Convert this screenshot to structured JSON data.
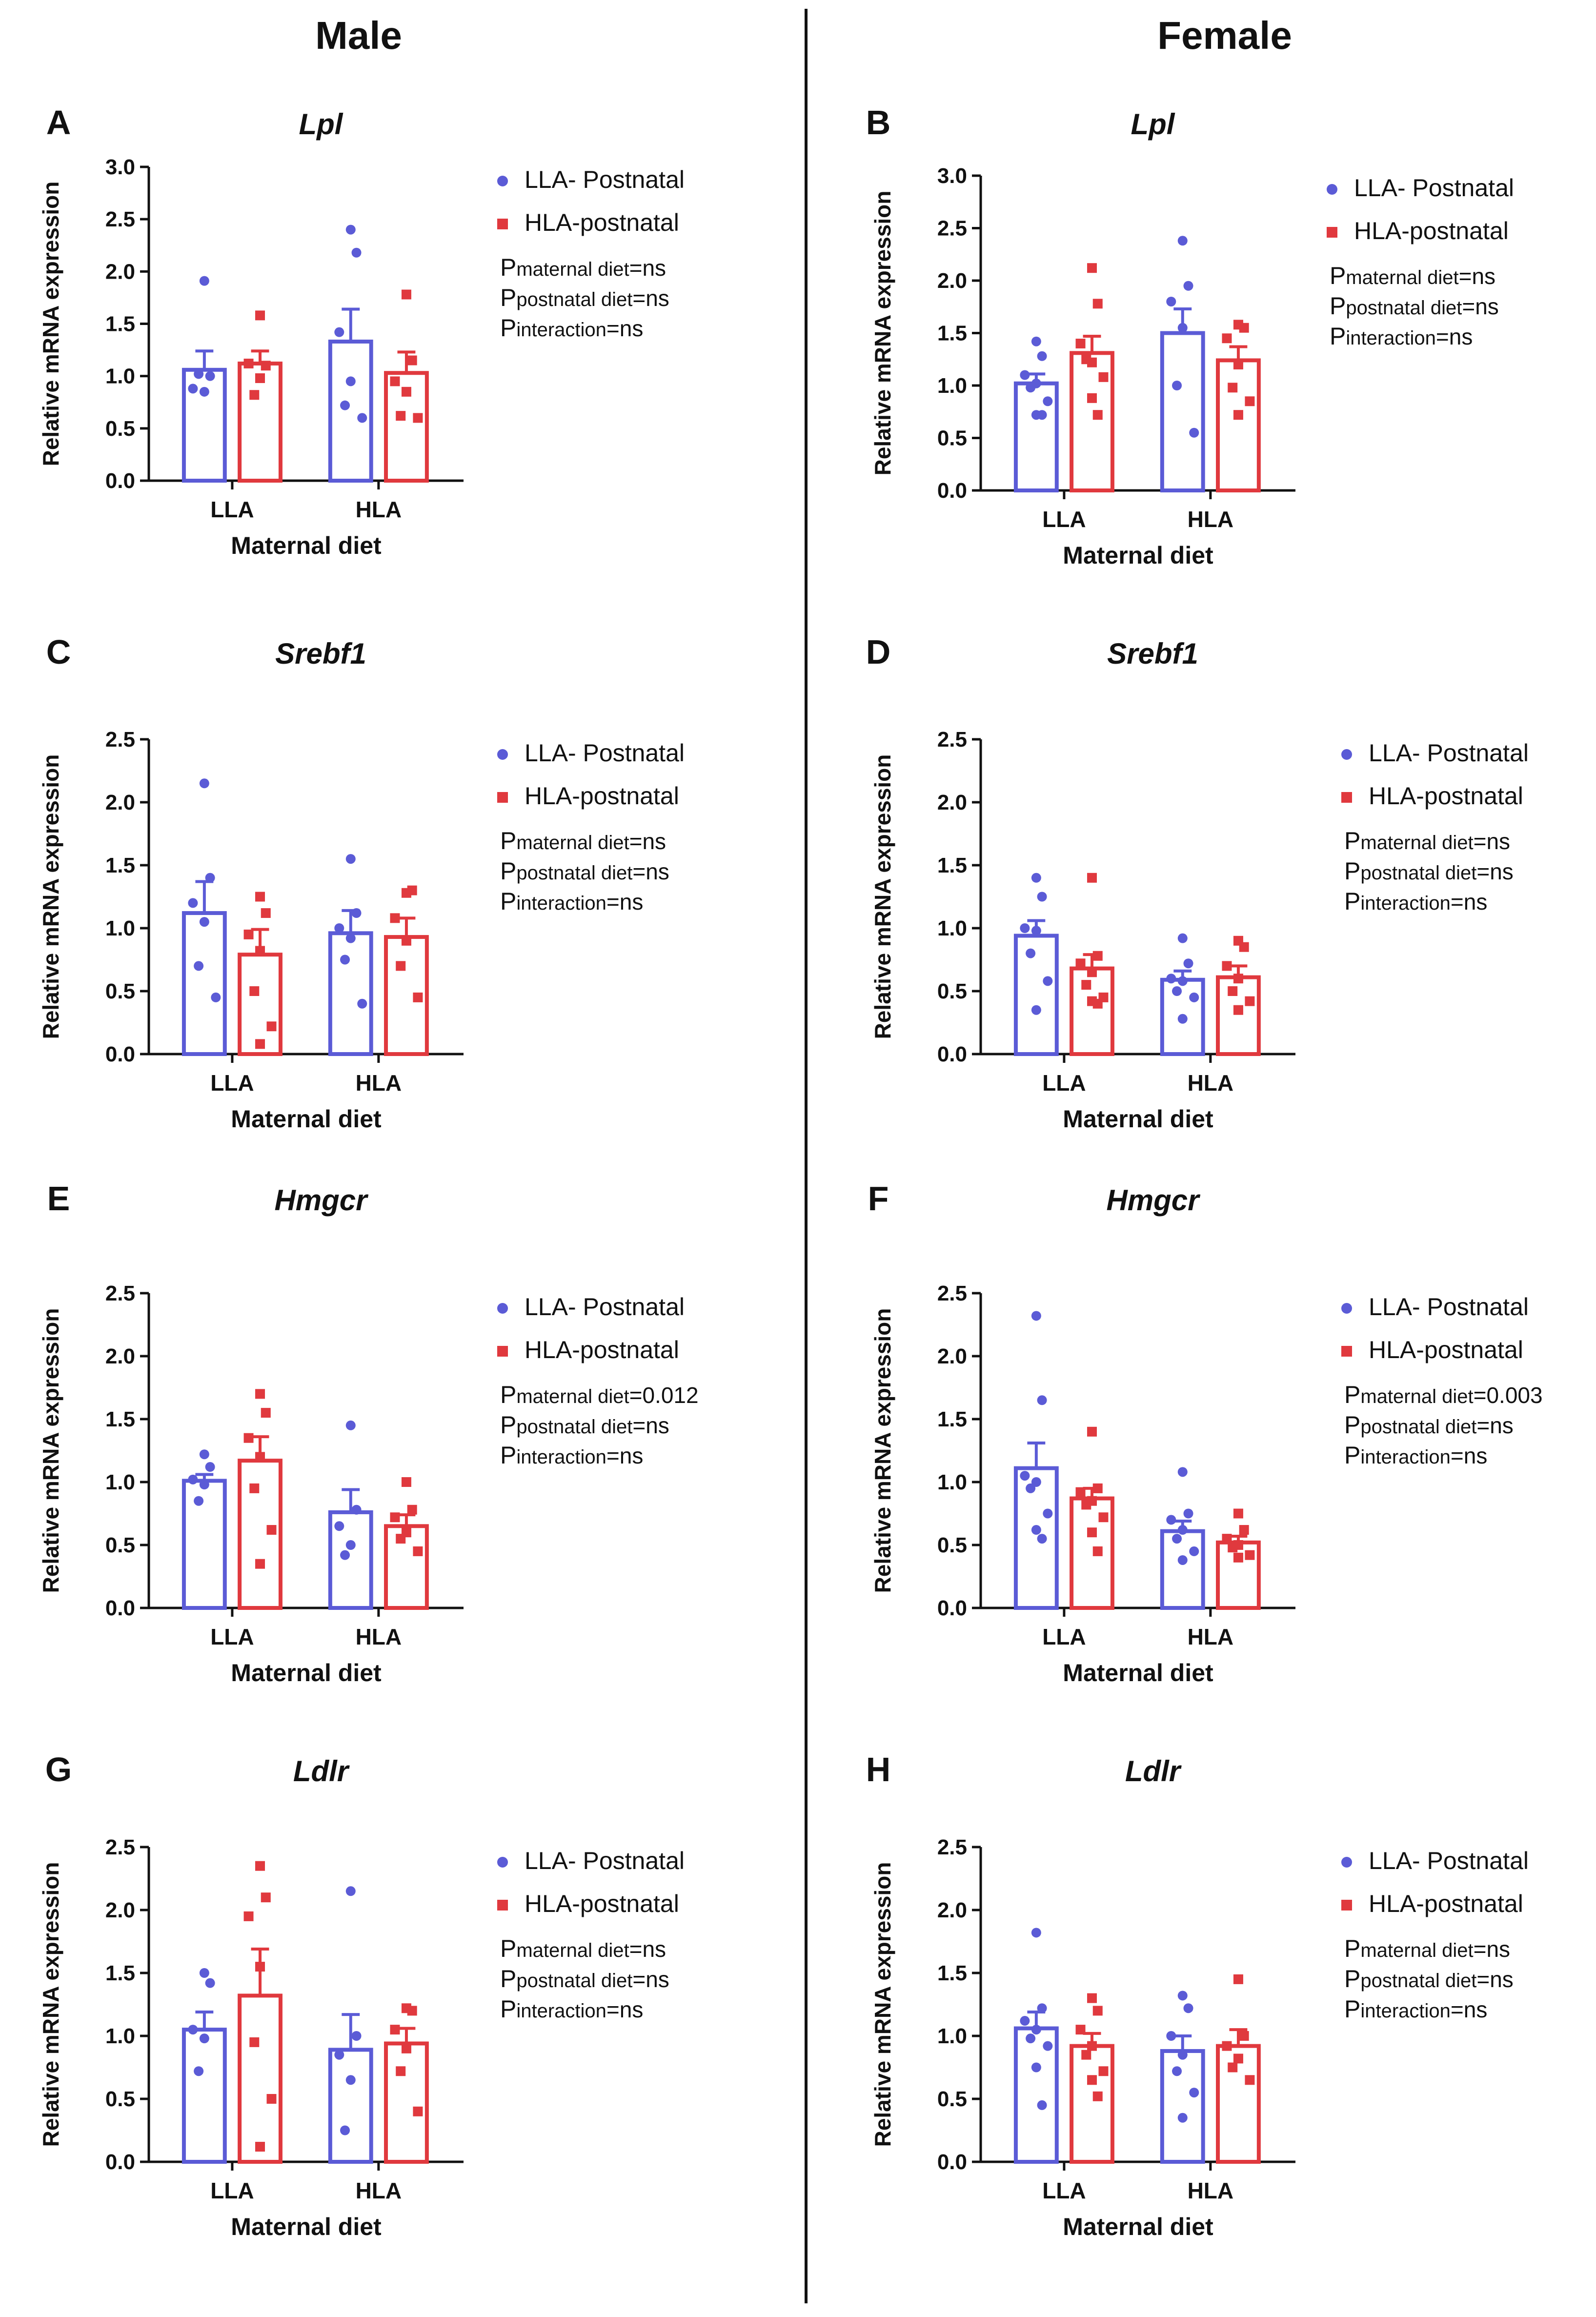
{
  "headers": {
    "male": "Male",
    "female": "Female"
  },
  "colors": {
    "llaBar": "#5b5bd6",
    "hlaBar": "#e0393e",
    "axis": "#111111",
    "divider": "#111111"
  },
  "legend": {
    "series": [
      "LLA- Postnatal",
      "HLA-postnatal"
    ],
    "stats_prefix": "P",
    "stats_labels": [
      "maternal diet",
      "postnatal diet",
      "interaction"
    ]
  },
  "chart_data": [
    {
      "panel": "A",
      "title": "Lpl",
      "type": "bar",
      "ylabel": "Relative mRNA expression",
      "xlabel": "Maternal diet",
      "ylim": [
        0,
        3.0
      ],
      "yticks": [
        0.0,
        0.5,
        1.0,
        1.5,
        2.0,
        2.5,
        3.0
      ],
      "yticklabels": [
        "0.0",
        "0.5",
        "1.0",
        "1.5",
        "2.0",
        "2.5",
        "3.0"
      ],
      "categories": [
        "LLA",
        "HLA"
      ],
      "series": [
        {
          "name": "LLA- Postnatal",
          "values": [
            1.06,
            1.33
          ],
          "sem": [
            0.18,
            0.31
          ],
          "points": [
            [
              1.91,
              1.0,
              0.88,
              0.85,
              1.02
            ],
            [
              2.4,
              2.18,
              1.42,
              0.95,
              0.72,
              0.6
            ]
          ]
        },
        {
          "name": "HLA-postnatal",
          "values": [
            1.12,
            1.03
          ],
          "sem": [
            0.12,
            0.2
          ],
          "points": [
            [
              1.58,
              1.1,
              1.12,
              0.98,
              0.82
            ],
            [
              1.78,
              1.15,
              0.95,
              0.85,
              0.62,
              0.6
            ]
          ]
        }
      ],
      "stats": [
        "ns",
        "ns",
        "ns"
      ]
    },
    {
      "panel": "B",
      "title": "Lpl",
      "type": "bar",
      "ylabel": "Relative mRNA expression",
      "xlabel": "Maternal diet",
      "ylim": [
        0,
        3.0
      ],
      "yticks": [
        0.0,
        0.5,
        1.0,
        1.5,
        2.0,
        2.5,
        3.0
      ],
      "yticklabels": [
        "0.0",
        "0.5",
        "1.0",
        "1.5",
        "2.0",
        "2.5",
        "3.0"
      ],
      "categories": [
        "LLA",
        "HLA"
      ],
      "series": [
        {
          "name": "LLA- Postnatal",
          "values": [
            1.02,
            1.5
          ],
          "sem": [
            0.09,
            0.23
          ],
          "points": [
            [
              1.42,
              1.28,
              1.1,
              1.02,
              0.98,
              0.85,
              0.72,
              0.72
            ],
            [
              2.38,
              1.95,
              1.8,
              1.55,
              1.0,
              0.55
            ]
          ]
        },
        {
          "name": "HLA-postnatal",
          "values": [
            1.31,
            1.24
          ],
          "sem": [
            0.16,
            0.13
          ],
          "points": [
            [
              2.12,
              1.78,
              1.4,
              1.22,
              1.25,
              1.08,
              0.88,
              0.72
            ],
            [
              1.58,
              1.55,
              1.45,
              1.2,
              0.98,
              0.85,
              0.72
            ]
          ]
        }
      ],
      "stats": [
        "ns",
        "ns",
        "ns"
      ]
    },
    {
      "panel": "C",
      "title": "Srebf1",
      "type": "bar",
      "ylabel": "Relative mRNA expression",
      "xlabel": "Maternal diet",
      "ylim": [
        0,
        2.5
      ],
      "yticks": [
        0.0,
        0.5,
        1.0,
        1.5,
        2.0,
        2.5
      ],
      "yticklabels": [
        "0.0",
        "0.5",
        "1.0",
        "1.5",
        "2.0",
        "2.5"
      ],
      "categories": [
        "LLA",
        "HLA"
      ],
      "series": [
        {
          "name": "LLA- Postnatal",
          "values": [
            1.12,
            0.96
          ],
          "sem": [
            0.25,
            0.18
          ],
          "points": [
            [
              2.15,
              1.4,
              1.2,
              1.05,
              0.7,
              0.45
            ],
            [
              1.55,
              1.12,
              1.0,
              0.92,
              0.75,
              0.4
            ]
          ]
        },
        {
          "name": "HLA-postnatal",
          "values": [
            0.79,
            0.93
          ],
          "sem": [
            0.2,
            0.15
          ],
          "points": [
            [
              1.25,
              1.12,
              0.95,
              0.82,
              0.5,
              0.22,
              0.08
            ],
            [
              1.28,
              1.3,
              1.08,
              0.9,
              0.7,
              0.45
            ]
          ]
        }
      ],
      "stats": [
        "ns",
        "ns",
        "ns"
      ]
    },
    {
      "panel": "D",
      "title": "Srebf1",
      "type": "bar",
      "ylabel": "Relative mRNA expression",
      "xlabel": "Maternal diet",
      "ylim": [
        0,
        2.5
      ],
      "yticks": [
        0.0,
        0.5,
        1.0,
        1.5,
        2.0,
        2.5
      ],
      "yticklabels": [
        "0.0",
        "0.5",
        "1.0",
        "1.5",
        "2.0",
        "2.5"
      ],
      "categories": [
        "LLA",
        "HLA"
      ],
      "series": [
        {
          "name": "LLA- Postnatal",
          "values": [
            0.94,
            0.59
          ],
          "sem": [
            0.12,
            0.07
          ],
          "points": [
            [
              1.4,
              1.25,
              1.0,
              0.98,
              0.8,
              0.58,
              0.35
            ],
            [
              0.92,
              0.72,
              0.6,
              0.58,
              0.5,
              0.45,
              0.28
            ]
          ]
        },
        {
          "name": "HLA-postnatal",
          "values": [
            0.68,
            0.61
          ],
          "sem": [
            0.11,
            0.09
          ],
          "points": [
            [
              1.4,
              0.78,
              0.72,
              0.65,
              0.55,
              0.45,
              0.42,
              0.4
            ],
            [
              0.9,
              0.85,
              0.7,
              0.6,
              0.5,
              0.42,
              0.35
            ]
          ]
        }
      ],
      "stats": [
        "ns",
        "ns",
        "ns"
      ]
    },
    {
      "panel": "E",
      "title": "Hmgcr",
      "type": "bar",
      "ylabel": "Relative mRNA expression",
      "xlabel": "Maternal diet",
      "ylim": [
        0,
        2.5
      ],
      "yticks": [
        0.0,
        0.5,
        1.0,
        1.5,
        2.0,
        2.5
      ],
      "yticklabels": [
        "0.0",
        "0.5",
        "1.0",
        "1.5",
        "2.0",
        "2.5"
      ],
      "categories": [
        "LLA",
        "HLA"
      ],
      "series": [
        {
          "name": "LLA- Postnatal",
          "values": [
            1.01,
            0.76
          ],
          "sem": [
            0.05,
            0.18
          ],
          "points": [
            [
              1.22,
              1.12,
              1.02,
              0.98,
              0.85
            ],
            [
              1.45,
              0.78,
              0.65,
              0.5,
              0.42
            ]
          ]
        },
        {
          "name": "HLA-postnatal",
          "values": [
            1.17,
            0.65
          ],
          "sem": [
            0.19,
            0.09
          ],
          "points": [
            [
              1.7,
              1.55,
              1.35,
              1.2,
              0.95,
              0.62,
              0.35
            ],
            [
              1.0,
              0.78,
              0.72,
              0.6,
              0.55,
              0.45
            ]
          ]
        }
      ],
      "stats": [
        "0.012",
        "ns",
        "ns"
      ]
    },
    {
      "panel": "F",
      "title": "Hmgcr",
      "type": "bar",
      "ylabel": "Relative mRNA expression",
      "xlabel": "Maternal diet",
      "ylim": [
        0,
        2.5
      ],
      "yticks": [
        0.0,
        0.5,
        1.0,
        1.5,
        2.0,
        2.5
      ],
      "yticklabels": [
        "0.0",
        "0.5",
        "1.0",
        "1.5",
        "2.0",
        "2.5"
      ],
      "categories": [
        "LLA",
        "HLA"
      ],
      "series": [
        {
          "name": "LLA- Postnatal",
          "values": [
            1.11,
            0.61
          ],
          "sem": [
            0.2,
            0.08
          ],
          "points": [
            [
              2.32,
              1.65,
              1.05,
              1.0,
              0.95,
              0.75,
              0.62,
              0.55
            ],
            [
              1.08,
              0.75,
              0.7,
              0.62,
              0.55,
              0.45,
              0.38
            ]
          ]
        },
        {
          "name": "HLA-postnatal",
          "values": [
            0.87,
            0.52
          ],
          "sem": [
            0.08,
            0.05
          ],
          "points": [
            [
              1.4,
              0.95,
              0.92,
              0.85,
              0.82,
              0.72,
              0.6,
              0.45
            ],
            [
              0.75,
              0.62,
              0.55,
              0.5,
              0.48,
              0.42,
              0.4
            ]
          ]
        }
      ],
      "stats": [
        "0.003",
        "ns",
        "ns"
      ]
    },
    {
      "panel": "G",
      "title": "Ldlr",
      "type": "bar",
      "ylabel": "Relative mRNA expression",
      "xlabel": "Maternal diet",
      "ylim": [
        0,
        2.5
      ],
      "yticks": [
        0.0,
        0.5,
        1.0,
        1.5,
        2.0,
        2.5
      ],
      "yticklabels": [
        "0.0",
        "0.5",
        "1.0",
        "1.5",
        "2.0",
        "2.5"
      ],
      "categories": [
        "LLA",
        "HLA"
      ],
      "series": [
        {
          "name": "LLA- Postnatal",
          "values": [
            1.05,
            0.89
          ],
          "sem": [
            0.14,
            0.28
          ],
          "points": [
            [
              1.5,
              1.42,
              1.05,
              0.98,
              0.72
            ],
            [
              2.15,
              1.0,
              0.85,
              0.65,
              0.25
            ]
          ]
        },
        {
          "name": "HLA-postnatal",
          "values": [
            1.32,
            0.94
          ],
          "sem": [
            0.37,
            0.12
          ],
          "points": [
            [
              2.35,
              2.1,
              1.95,
              1.55,
              0.95,
              0.5,
              0.12
            ],
            [
              1.22,
              1.2,
              1.05,
              0.9,
              0.72,
              0.4
            ]
          ]
        }
      ],
      "stats": [
        "ns",
        "ns",
        "ns"
      ]
    },
    {
      "panel": "H",
      "title": "Ldlr",
      "type": "bar",
      "ylabel": "Relative mRNA expression",
      "xlabel": "Maternal diet",
      "ylim": [
        0,
        2.5
      ],
      "yticks": [
        0.0,
        0.5,
        1.0,
        1.5,
        2.0,
        2.5
      ],
      "yticklabels": [
        "0.0",
        "0.5",
        "1.0",
        "1.5",
        "2.0",
        "2.5"
      ],
      "categories": [
        "LLA",
        "HLA"
      ],
      "series": [
        {
          "name": "LLA- Postnatal",
          "values": [
            1.06,
            0.88
          ],
          "sem": [
            0.13,
            0.12
          ],
          "points": [
            [
              1.82,
              1.22,
              1.12,
              1.05,
              0.98,
              0.92,
              0.75,
              0.45
            ],
            [
              1.32,
              1.22,
              1.0,
              0.85,
              0.72,
              0.55,
              0.35
            ]
          ]
        },
        {
          "name": "HLA-postnatal",
          "values": [
            0.92,
            0.92
          ],
          "sem": [
            0.1,
            0.13
          ],
          "points": [
            [
              1.3,
              1.2,
              1.05,
              0.92,
              0.85,
              0.72,
              0.65,
              0.52
            ],
            [
              1.45,
              1.0,
              0.92,
              0.82,
              0.75,
              0.65
            ]
          ]
        }
      ],
      "stats": [
        "ns",
        "ns",
        "ns"
      ]
    }
  ]
}
